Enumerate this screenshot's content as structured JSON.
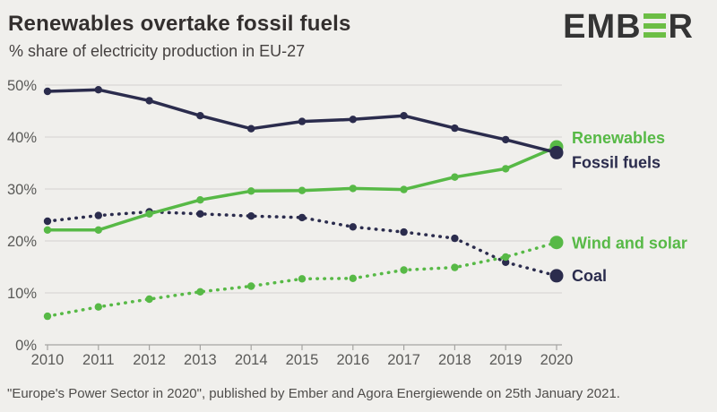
{
  "header": {
    "title": "Renewables overtake fossil fuels",
    "subtitle": "% share of electricity production in EU-27"
  },
  "logo": {
    "text_left": "EMB",
    "text_right": "R",
    "bar_color": "#6cbe45",
    "text_color": "#343434"
  },
  "footer": {
    "text": "\"Europe's Power Sector in 2020\", published by Ember and Agora Energiewende on 25th January 2021."
  },
  "colors": {
    "background": "#f0efec",
    "green": "#57b946",
    "navy": "#2b2c4d",
    "gridline": "#d9d8d5",
    "axis": "#a5a4a2",
    "tick_label": "#5a5a58"
  },
  "chart_data": {
    "type": "line",
    "title": "Renewables overtake fossil fuels",
    "subtitle": "% share of electricity production in EU-27",
    "x": [
      2010,
      2011,
      2012,
      2013,
      2014,
      2015,
      2016,
      2017,
      2018,
      2019,
      2020
    ],
    "ylim": [
      0,
      50
    ],
    "yticks": [
      0,
      10,
      20,
      30,
      40,
      50
    ],
    "ytick_suffix": "%",
    "grid": true,
    "legend_position": "right",
    "series": [
      {
        "name": "Renewables",
        "style": "solid",
        "color": "#57b946",
        "values": [
          22.1,
          22.1,
          25.2,
          27.9,
          29.6,
          29.7,
          30.1,
          29.9,
          32.3,
          33.9,
          38.1
        ],
        "label_dy": -10,
        "z": 3
      },
      {
        "name": "Fossil fuels",
        "style": "solid",
        "color": "#2b2c4d",
        "values": [
          48.8,
          49.1,
          47.0,
          44.1,
          41.6,
          43.0,
          43.4,
          44.1,
          41.7,
          39.5,
          37.0
        ],
        "label_dy": 11,
        "z": 4
      },
      {
        "name": "Wind and solar",
        "style": "dotted",
        "color": "#57b946",
        "values": [
          5.5,
          7.3,
          8.8,
          10.2,
          11.3,
          12.7,
          12.8,
          14.4,
          14.9,
          16.9,
          19.7
        ],
        "label_dy": 1,
        "z": 2
      },
      {
        "name": "Coal",
        "style": "dotted",
        "color": "#2b2c4d",
        "values": [
          23.8,
          24.9,
          25.6,
          25.2,
          24.8,
          24.5,
          22.7,
          21.7,
          20.5,
          15.9,
          13.3
        ],
        "label_dy": 0,
        "z": 1
      }
    ]
  }
}
